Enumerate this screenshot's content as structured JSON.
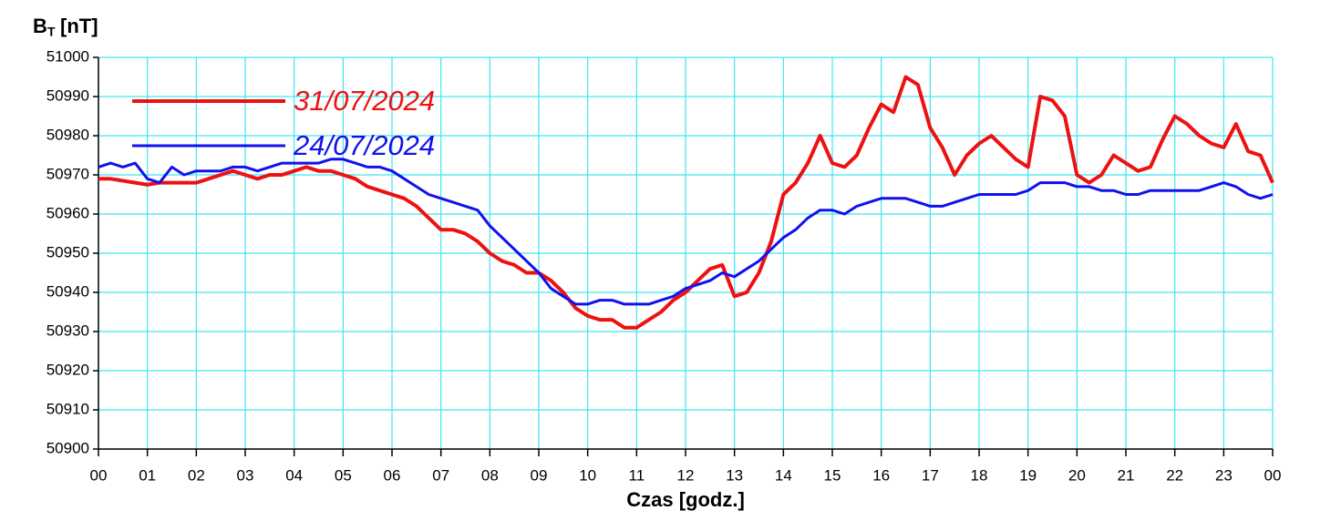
{
  "chart_data": {
    "type": "line",
    "y_label": {
      "main": "B",
      "sub": "T",
      "unit": "[nT]"
    },
    "x_label": "Czas [godz.]",
    "xlim": [
      0,
      24
    ],
    "xticks": [
      {
        "value": 0,
        "label": "00"
      },
      {
        "value": 1,
        "label": "01"
      },
      {
        "value": 2,
        "label": "02"
      },
      {
        "value": 3,
        "label": "03"
      },
      {
        "value": 4,
        "label": "04"
      },
      {
        "value": 5,
        "label": "05"
      },
      {
        "value": 6,
        "label": "06"
      },
      {
        "value": 7,
        "label": "07"
      },
      {
        "value": 8,
        "label": "08"
      },
      {
        "value": 9,
        "label": "09"
      },
      10,
      11,
      12,
      13,
      14,
      15,
      16,
      17,
      18,
      19,
      20,
      21,
      22,
      23,
      {
        "value": 24,
        "label": "00"
      }
    ],
    "ylim": [
      50900,
      51000
    ],
    "yticks": [
      50900,
      50910,
      50920,
      50930,
      50940,
      50950,
      50960,
      50970,
      50980,
      50990,
      51000
    ],
    "grid": true,
    "grid_color": "#3ee6f2",
    "legend": "upper left",
    "x": [
      0,
      0.25,
      0.5,
      0.75,
      1,
      1.25,
      1.5,
      1.75,
      2,
      2.25,
      2.5,
      2.75,
      3,
      3.25,
      3.5,
      3.75,
      4,
      4.25,
      4.5,
      4.75,
      5,
      5.25,
      5.5,
      5.75,
      6,
      6.25,
      6.5,
      6.75,
      7,
      7.25,
      7.5,
      7.75,
      8,
      8.25,
      8.5,
      8.75,
      9,
      9.25,
      9.5,
      9.75,
      10,
      10.25,
      10.5,
      10.75,
      11,
      11.25,
      11.5,
      11.75,
      12,
      12.25,
      12.5,
      12.75,
      13,
      13.25,
      13.5,
      13.75,
      14,
      14.25,
      14.5,
      14.75,
      15,
      15.25,
      15.5,
      15.75,
      16,
      16.25,
      16.5,
      16.75,
      17,
      17.25,
      17.5,
      17.75,
      18,
      18.25,
      18.5,
      18.75,
      19,
      19.25,
      19.5,
      19.75,
      20,
      20.25,
      20.5,
      20.75,
      21,
      21.25,
      21.5,
      21.75,
      22,
      22.25,
      22.5,
      22.75,
      23,
      23.25,
      23.5,
      23.75,
      24
    ],
    "series": [
      {
        "name": "31/07/2024",
        "color": "#ee1111",
        "width": 4,
        "values": [
          50969,
          50969,
          50968.5,
          50968,
          50967.5,
          50968,
          50968,
          50968,
          50968,
          50969,
          50970,
          50971,
          50970,
          50969,
          50970,
          50970,
          50971,
          50972,
          50971,
          50971,
          50970,
          50969,
          50967,
          50966,
          50965,
          50964,
          50962,
          50959,
          50956,
          50956,
          50955,
          50953,
          50950,
          50948,
          50947,
          50945,
          50945,
          50943,
          50940,
          50936,
          50934,
          50933,
          50933,
          50931,
          50931,
          50933,
          50935,
          50938,
          50940,
          50943,
          50946,
          50947,
          50939,
          50940,
          50945,
          50953,
          50965,
          50968,
          50973,
          50980,
          50973,
          50972,
          50975,
          50982,
          50988,
          50986,
          50995,
          50993,
          50982,
          50977,
          50970,
          50975,
          50978,
          50980,
          50977,
          50974,
          50972,
          50990,
          50989,
          50985,
          50970,
          50968,
          50970,
          50975,
          50973,
          50971,
          50972,
          50979,
          50985,
          50983,
          50980,
          50978,
          50977,
          50983,
          50976,
          50975,
          50968
        ]
      },
      {
        "name": "24/07/2024",
        "color": "#1111ee",
        "width": 3,
        "values": [
          50972,
          50973,
          50972,
          50973,
          50969,
          50968,
          50972,
          50970,
          50971,
          50971,
          50971,
          50972,
          50972,
          50971,
          50972,
          50973,
          50973,
          50973,
          50973,
          50974,
          50974,
          50973,
          50972,
          50972,
          50971,
          50969,
          50967,
          50965,
          50964,
          50963,
          50962,
          50961,
          50957,
          50954,
          50951,
          50948,
          50945,
          50941,
          50939,
          50937,
          50937,
          50938,
          50938,
          50937,
          50937,
          50937,
          50938,
          50939,
          50941,
          50942,
          50943,
          50945,
          50944,
          50946,
          50948,
          50951,
          50954,
          50956,
          50959,
          50961,
          50961,
          50960,
          50962,
          50963,
          50964,
          50964,
          50964,
          50963,
          50962,
          50962,
          50963,
          50964,
          50965,
          50965,
          50965,
          50965,
          50966,
          50968,
          50968,
          50968,
          50967,
          50967,
          50966,
          50966,
          50965,
          50965,
          50966,
          50966,
          50966,
          50966,
          50966,
          50967,
          50968,
          50967,
          50965,
          50964,
          50965
        ]
      }
    ]
  }
}
